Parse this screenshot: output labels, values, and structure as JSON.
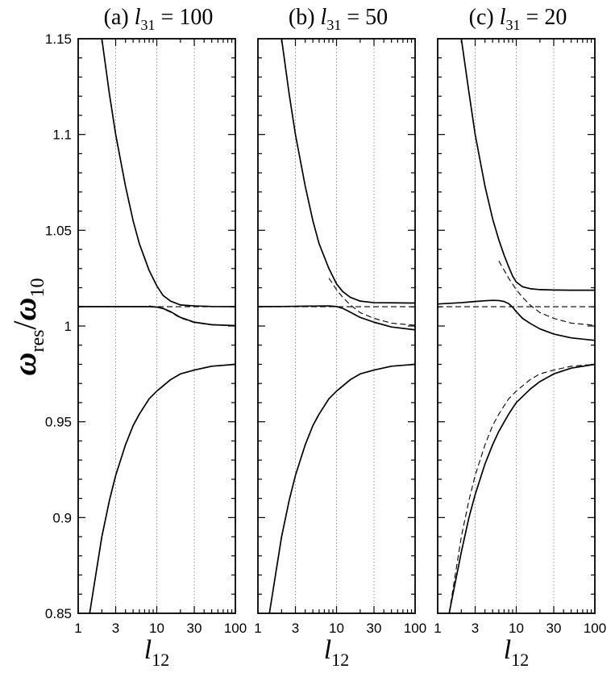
{
  "figure": {
    "ylabel": {
      "main": "ω",
      "sub": "res",
      "slash": "/",
      "main2": "ω",
      "sub2": "10"
    },
    "xlabel": {
      "main": "l",
      "sub": "12"
    }
  },
  "chart_data": [
    {
      "type": "line",
      "panel": "a",
      "title": {
        "prefix": "(a)",
        "var": "l",
        "sub": "31",
        "rest": "= 100"
      },
      "x_scale": "log",
      "xlim": [
        1,
        100
      ],
      "ylim": [
        0.85,
        1.15
      ],
      "xticks": [
        1,
        3,
        10,
        30,
        100
      ],
      "xtick_labels": [
        "1",
        "3",
        "10",
        "30",
        "100"
      ],
      "yticks": [
        0.85,
        0.9,
        0.95,
        1,
        1.05,
        1.1,
        1.15
      ],
      "ytick_labels": [
        "0.85",
        "0.9",
        "0.95",
        "1",
        "1.05",
        "1.1",
        "1.15"
      ],
      "vertical_gridlines": [
        3,
        10,
        30
      ],
      "series": [
        {
          "style": "solid",
          "x": [
            2.0,
            2.5,
            3,
            4,
            5,
            6,
            8,
            10,
            12,
            15,
            20,
            30,
            50,
            100
          ],
          "y": [
            1.15,
            1.121,
            1.1,
            1.073,
            1.055,
            1.043,
            1.029,
            1.021,
            1.016,
            1.013,
            1.011,
            1.0105,
            1.0102,
            1.0101
          ]
        },
        {
          "style": "solid",
          "x": [
            1,
            2,
            5,
            8,
            10,
            12,
            15,
            20,
            30,
            50,
            100
          ],
          "y": [
            1.0101,
            1.0101,
            1.0101,
            1.0101,
            1.0099,
            1.0092,
            1.0075,
            1.0045,
            1.002,
            1.0007,
            1.0002
          ]
        },
        {
          "style": "solid",
          "x": [
            1.4,
            1.6,
            2,
            2.5,
            3,
            4,
            5,
            6,
            8,
            10,
            15,
            20,
            30,
            50,
            100
          ],
          "y": [
            0.85,
            0.865,
            0.89,
            0.909,
            0.922,
            0.938,
            0.948,
            0.954,
            0.962,
            0.966,
            0.972,
            0.975,
            0.977,
            0.979,
            0.98
          ]
        },
        {
          "style": "dashed",
          "x": [
            1,
            2,
            5,
            10,
            20,
            50,
            100
          ],
          "y": [
            1.0101,
            1.0101,
            1.0101,
            1.0101,
            1.0101,
            1.0101,
            1.0101
          ]
        },
        {
          "style": "dashed",
          "x": [
            8,
            10,
            12,
            15,
            20,
            30,
            50,
            100
          ],
          "y": [
            1.0105,
            1.0099,
            1.009,
            1.0072,
            1.0042,
            1.0018,
            1.0006,
            1.0001
          ]
        },
        {
          "style": "dashed",
          "x": [
            1.4,
            1.6,
            2,
            2.5,
            3,
            4,
            5,
            6,
            8,
            10,
            15,
            20,
            30,
            50,
            100
          ],
          "y": [
            0.85,
            0.865,
            0.89,
            0.909,
            0.922,
            0.938,
            0.948,
            0.954,
            0.962,
            0.966,
            0.972,
            0.975,
            0.977,
            0.979,
            0.98
          ]
        }
      ]
    },
    {
      "type": "line",
      "panel": "b",
      "title": {
        "prefix": "(b)",
        "var": "l",
        "sub": "31",
        "rest": "= 50"
      },
      "x_scale": "log",
      "xlim": [
        1,
        100
      ],
      "ylim": [
        0.85,
        1.15
      ],
      "xticks": [
        1,
        3,
        10,
        30,
        100
      ],
      "xtick_labels": [
        "1",
        "3",
        "10",
        "30",
        "100"
      ],
      "vertical_gridlines": [
        3,
        10,
        30
      ],
      "series": [
        {
          "style": "solid",
          "x": [
            2.0,
            2.5,
            3,
            4,
            5,
            6,
            8,
            10,
            12,
            15,
            20,
            30,
            50,
            100
          ],
          "y": [
            1.15,
            1.121,
            1.1,
            1.073,
            1.055,
            1.043,
            1.03,
            1.022,
            1.018,
            1.015,
            1.013,
            1.0122,
            1.0121,
            1.012
          ]
        },
        {
          "style": "solid",
          "x": [
            1,
            2,
            5,
            8,
            10,
            12,
            15,
            20,
            30,
            50,
            100
          ],
          "y": [
            1.0101,
            1.0102,
            1.0104,
            1.0105,
            1.0102,
            1.0092,
            1.0072,
            1.0045,
            1.002,
            0.9995,
            0.998
          ]
        },
        {
          "style": "solid",
          "x": [
            1.4,
            1.6,
            2,
            2.5,
            3,
            4,
            5,
            6,
            8,
            10,
            15,
            20,
            30,
            50,
            100
          ],
          "y": [
            0.85,
            0.865,
            0.89,
            0.909,
            0.922,
            0.938,
            0.948,
            0.954,
            0.962,
            0.966,
            0.972,
            0.975,
            0.977,
            0.979,
            0.98
          ]
        },
        {
          "style": "dashed",
          "x": [
            1,
            2,
            5,
            10,
            20,
            50,
            100
          ],
          "y": [
            1.0101,
            1.0101,
            1.0101,
            1.0101,
            1.0101,
            1.0101,
            1.0101
          ]
        },
        {
          "style": "dashed",
          "x": [
            8,
            10,
            12,
            15,
            20,
            30,
            50,
            100
          ],
          "y": [
            1.025,
            1.019,
            1.015,
            1.011,
            1.007,
            1.004,
            1.0015,
            1.0004
          ]
        },
        {
          "style": "dashed",
          "x": [
            1.4,
            1.6,
            2,
            2.5,
            3,
            4,
            5,
            6,
            8,
            10,
            15,
            20,
            30,
            50,
            100
          ],
          "y": [
            0.85,
            0.865,
            0.89,
            0.909,
            0.922,
            0.938,
            0.948,
            0.954,
            0.962,
            0.966,
            0.972,
            0.975,
            0.977,
            0.979,
            0.98
          ]
        }
      ]
    },
    {
      "type": "line",
      "panel": "c",
      "title": {
        "prefix": "(c)",
        "var": "l",
        "sub": "31",
        "rest": "= 20"
      },
      "x_scale": "log",
      "xlim": [
        1,
        100
      ],
      "ylim": [
        0.85,
        1.15
      ],
      "xticks": [
        1,
        3,
        10,
        30,
        100
      ],
      "xtick_labels": [
        "1",
        "3",
        "10",
        "30",
        "100"
      ],
      "vertical_gridlines": [
        3,
        10,
        30
      ],
      "series": [
        {
          "style": "solid",
          "x": [
            2.0,
            2.5,
            3,
            4,
            5,
            6,
            7,
            8,
            9,
            10,
            12,
            15,
            20,
            30,
            50,
            100
          ],
          "y": [
            1.15,
            1.122,
            1.1,
            1.073,
            1.056,
            1.045,
            1.037,
            1.031,
            1.026,
            1.023,
            1.0205,
            1.0195,
            1.019,
            1.0188,
            1.0187,
            1.0187
          ]
        },
        {
          "style": "solid",
          "x": [
            1,
            2,
            3,
            4,
            5,
            6,
            7,
            8,
            9,
            10,
            12,
            15,
            20,
            30,
            50,
            100
          ],
          "y": [
            1.0115,
            1.0122,
            1.0128,
            1.0132,
            1.0134,
            1.0133,
            1.0128,
            1.0117,
            1.0098,
            1.0075,
            1.004,
            1.0014,
            0.9985,
            0.9958,
            0.9938,
            0.9925
          ]
        },
        {
          "style": "solid",
          "x": [
            1.4,
            1.6,
            2,
            2.5,
            3,
            4,
            5,
            6,
            8,
            10,
            15,
            20,
            30,
            50,
            100
          ],
          "y": [
            0.85,
            0.862,
            0.882,
            0.9,
            0.912,
            0.928,
            0.938,
            0.945,
            0.954,
            0.96,
            0.967,
            0.971,
            0.975,
            0.978,
            0.98
          ]
        },
        {
          "style": "dashed",
          "x": [
            1,
            2,
            5,
            10,
            20,
            50,
            100
          ],
          "y": [
            1.0101,
            1.0101,
            1.0101,
            1.0101,
            1.0101,
            1.0101,
            1.0101
          ]
        },
        {
          "style": "dashed",
          "x": [
            6,
            8,
            10,
            12,
            15,
            20,
            30,
            50,
            100
          ],
          "y": [
            1.034,
            1.025,
            1.019,
            1.015,
            1.011,
            1.007,
            1.004,
            1.0015,
            1.0004
          ]
        },
        {
          "style": "dashed",
          "x": [
            1.4,
            1.6,
            2,
            2.5,
            3,
            4,
            5,
            6,
            8,
            10,
            15,
            20,
            30,
            50,
            100
          ],
          "y": [
            0.85,
            0.865,
            0.89,
            0.909,
            0.922,
            0.938,
            0.948,
            0.954,
            0.962,
            0.966,
            0.972,
            0.975,
            0.977,
            0.979,
            0.98
          ]
        }
      ]
    }
  ]
}
